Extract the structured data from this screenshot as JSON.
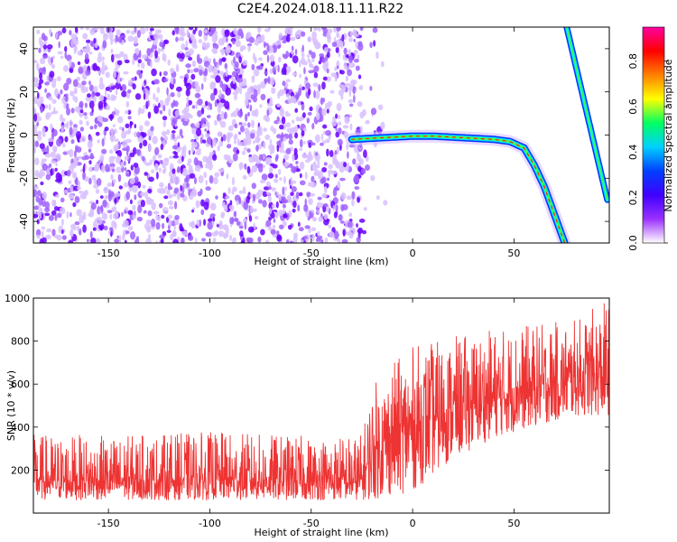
{
  "title": "C2E4.2024.018.11.11.R22",
  "chart_data": [
    {
      "type": "heatmap",
      "xlabel": "Height of straight line (km)",
      "ylabel": "Frequency (Hz)",
      "xlim": [
        -187,
        97
      ],
      "ylim": [
        -50,
        50
      ],
      "xticks": [
        -150,
        -100,
        -50,
        0,
        50
      ],
      "yticks": [
        -40,
        -20,
        0,
        20,
        40
      ],
      "colorbar": {
        "label": "Normalized spectral amplitude",
        "range": [
          0.0,
          0.95
        ],
        "ticks": [
          0.0,
          0.2,
          0.4,
          0.6,
          0.8
        ],
        "colors": [
          "#ffffff",
          "#9b30ff",
          "#3f00ff",
          "#0040ff",
          "#00d0ff",
          "#00ff60",
          "#ffff00",
          "#ff8000",
          "#ff0000",
          "#ff00a0"
        ]
      },
      "noise_region": {
        "x": [
          -187,
          -25
        ],
        "amplitude": 0.15
      },
      "ridge": {
        "x": [
          -30,
          -20,
          -10,
          0,
          10,
          20,
          30,
          40,
          48,
          55,
          60,
          65,
          70,
          75
        ],
        "y": [
          -2,
          -1.5,
          -1,
          -0.5,
          -0.5,
          -1,
          -1.5,
          -2,
          -3,
          -6,
          -14,
          -24,
          -37,
          -50
        ],
        "amplitude": 0.85
      },
      "line": {
        "x": [
          76,
          96
        ],
        "y": [
          50,
          -30
        ],
        "amplitude": 0.7
      }
    },
    {
      "type": "line",
      "xlabel": "Height of straight line (km)",
      "ylabel": "SNR (10 * v/v)",
      "xlim": [
        -187,
        97
      ],
      "ylim": [
        0,
        1000
      ],
      "xticks": [
        -150,
        -100,
        -50,
        0,
        50
      ],
      "yticks": [
        200,
        400,
        600,
        800,
        1000
      ],
      "color": "#ee3333",
      "envelope": {
        "x": [
          -187,
          -150,
          -100,
          -50,
          -25,
          -20,
          -10,
          0,
          20,
          40,
          60,
          80,
          97
        ],
        "mean": [
          150,
          150,
          155,
          150,
          150,
          280,
          350,
          400,
          480,
          540,
          580,
          620,
          640
        ],
        "low": [
          60,
          60,
          60,
          60,
          60,
          60,
          80,
          100,
          250,
          350,
          400,
          450,
          450
        ],
        "high": [
          370,
          360,
          380,
          360,
          370,
          600,
          700,
          780,
          820,
          860,
          880,
          900,
          1000
        ]
      }
    }
  ]
}
